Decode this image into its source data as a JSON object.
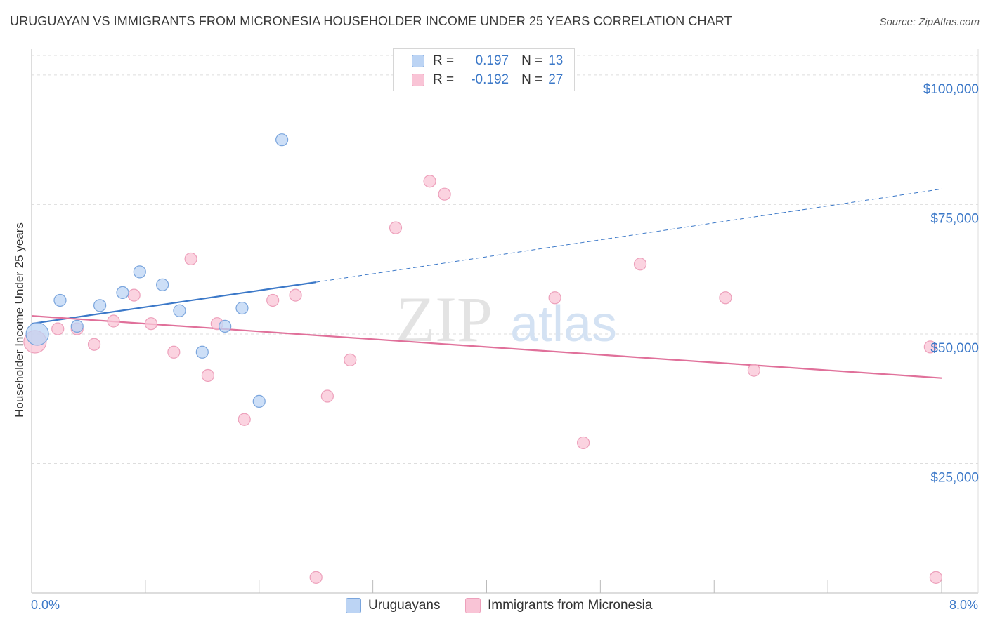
{
  "title": "URUGUAYAN VS IMMIGRANTS FROM MICRONESIA HOUSEHOLDER INCOME UNDER 25 YEARS CORRELATION CHART",
  "source": "Source: ZipAtlas.com",
  "watermark": {
    "zip": "ZIP",
    "atlas": "atlas"
  },
  "colors": {
    "blue": "#3b78c8",
    "blue_fill": "#bcd4f4",
    "blue_stroke": "#7aa5dd",
    "pink": "#e0709a",
    "pink_fill": "#f9c4d6",
    "pink_stroke": "#eda0bb",
    "grid": "#dddddd",
    "axis": "#bbbbbb"
  },
  "legend": {
    "rows": [
      {
        "r_label": "R =",
        "r_value": "0.197",
        "n_label": "N =",
        "n_value": "13"
      },
      {
        "r_label": "R =",
        "r_value": "-0.192",
        "n_label": "N =",
        "n_value": "27"
      }
    ]
  },
  "axes": {
    "ylabel": "Householder Income Under 25 years",
    "x_min_label": "0.0%",
    "x_max_label": "8.0%",
    "y_ticks": [
      {
        "value": 100000,
        "label": "$100,000"
      },
      {
        "value": 75000,
        "label": "$75,000"
      },
      {
        "value": 50000,
        "label": "$50,000"
      },
      {
        "value": 25000,
        "label": "$25,000"
      }
    ]
  },
  "chart_data": {
    "type": "scatter",
    "title": "URUGUAYAN VS IMMIGRANTS FROM MICRONESIA HOUSEHOLDER INCOME UNDER 25 YEARS CORRELATION CHART",
    "xlabel": "",
    "ylabel": "Householder Income Under 25 years",
    "xlim": [
      0,
      8
    ],
    "ylim": [
      0,
      105000
    ],
    "x_unit": "%",
    "legend_position": "bottom-center",
    "series": [
      {
        "name": "Uruguayans",
        "color": "#3b78c8",
        "r": 0.197,
        "n": 13,
        "trend": {
          "x0": 0.0,
          "y0": 52000,
          "x1": 2.5,
          "y1": 60000,
          "dash_to_x": 8.0,
          "dash_to_y": 78000
        },
        "points": [
          {
            "x": 0.05,
            "y": 50000,
            "big": true
          },
          {
            "x": 0.25,
            "y": 56500
          },
          {
            "x": 0.4,
            "y": 51500
          },
          {
            "x": 0.6,
            "y": 55500
          },
          {
            "x": 0.8,
            "y": 58000
          },
          {
            "x": 0.95,
            "y": 62000
          },
          {
            "x": 1.15,
            "y": 59500
          },
          {
            "x": 1.3,
            "y": 54500
          },
          {
            "x": 1.5,
            "y": 46500
          },
          {
            "x": 1.7,
            "y": 51500
          },
          {
            "x": 1.85,
            "y": 55000
          },
          {
            "x": 2.0,
            "y": 37000
          },
          {
            "x": 2.2,
            "y": 87500
          }
        ]
      },
      {
        "name": "Immigrants from Micronesia",
        "color": "#e0709a",
        "r": -0.192,
        "n": 27,
        "trend": {
          "x0": 0.0,
          "y0": 53500,
          "x1": 8.0,
          "y1": 41500
        },
        "points": [
          {
            "x": 0.03,
            "y": 48500,
            "big": true
          },
          {
            "x": 0.23,
            "y": 51000
          },
          {
            "x": 0.4,
            "y": 51000
          },
          {
            "x": 0.55,
            "y": 48000
          },
          {
            "x": 0.72,
            "y": 52500
          },
          {
            "x": 0.9,
            "y": 57500
          },
          {
            "x": 1.05,
            "y": 52000
          },
          {
            "x": 1.25,
            "y": 46500
          },
          {
            "x": 1.4,
            "y": 64500
          },
          {
            "x": 1.55,
            "y": 42000
          },
          {
            "x": 1.63,
            "y": 52000
          },
          {
            "x": 1.87,
            "y": 33500
          },
          {
            "x": 2.12,
            "y": 56500
          },
          {
            "x": 2.32,
            "y": 57500
          },
          {
            "x": 2.5,
            "y": 3000
          },
          {
            "x": 2.6,
            "y": 38000
          },
          {
            "x": 2.8,
            "y": 45000
          },
          {
            "x": 3.2,
            "y": 70500
          },
          {
            "x": 3.5,
            "y": 79500
          },
          {
            "x": 3.63,
            "y": 77000
          },
          {
            "x": 4.6,
            "y": 57000
          },
          {
            "x": 4.85,
            "y": 29000
          },
          {
            "x": 5.35,
            "y": 63500
          },
          {
            "x": 6.1,
            "y": 57000
          },
          {
            "x": 6.35,
            "y": 43000
          },
          {
            "x": 7.9,
            "y": 47500
          },
          {
            "x": 7.95,
            "y": 3000
          }
        ]
      }
    ]
  },
  "bottom_legend": {
    "series_a": "Uruguayans",
    "series_b": "Immigrants from Micronesia"
  }
}
